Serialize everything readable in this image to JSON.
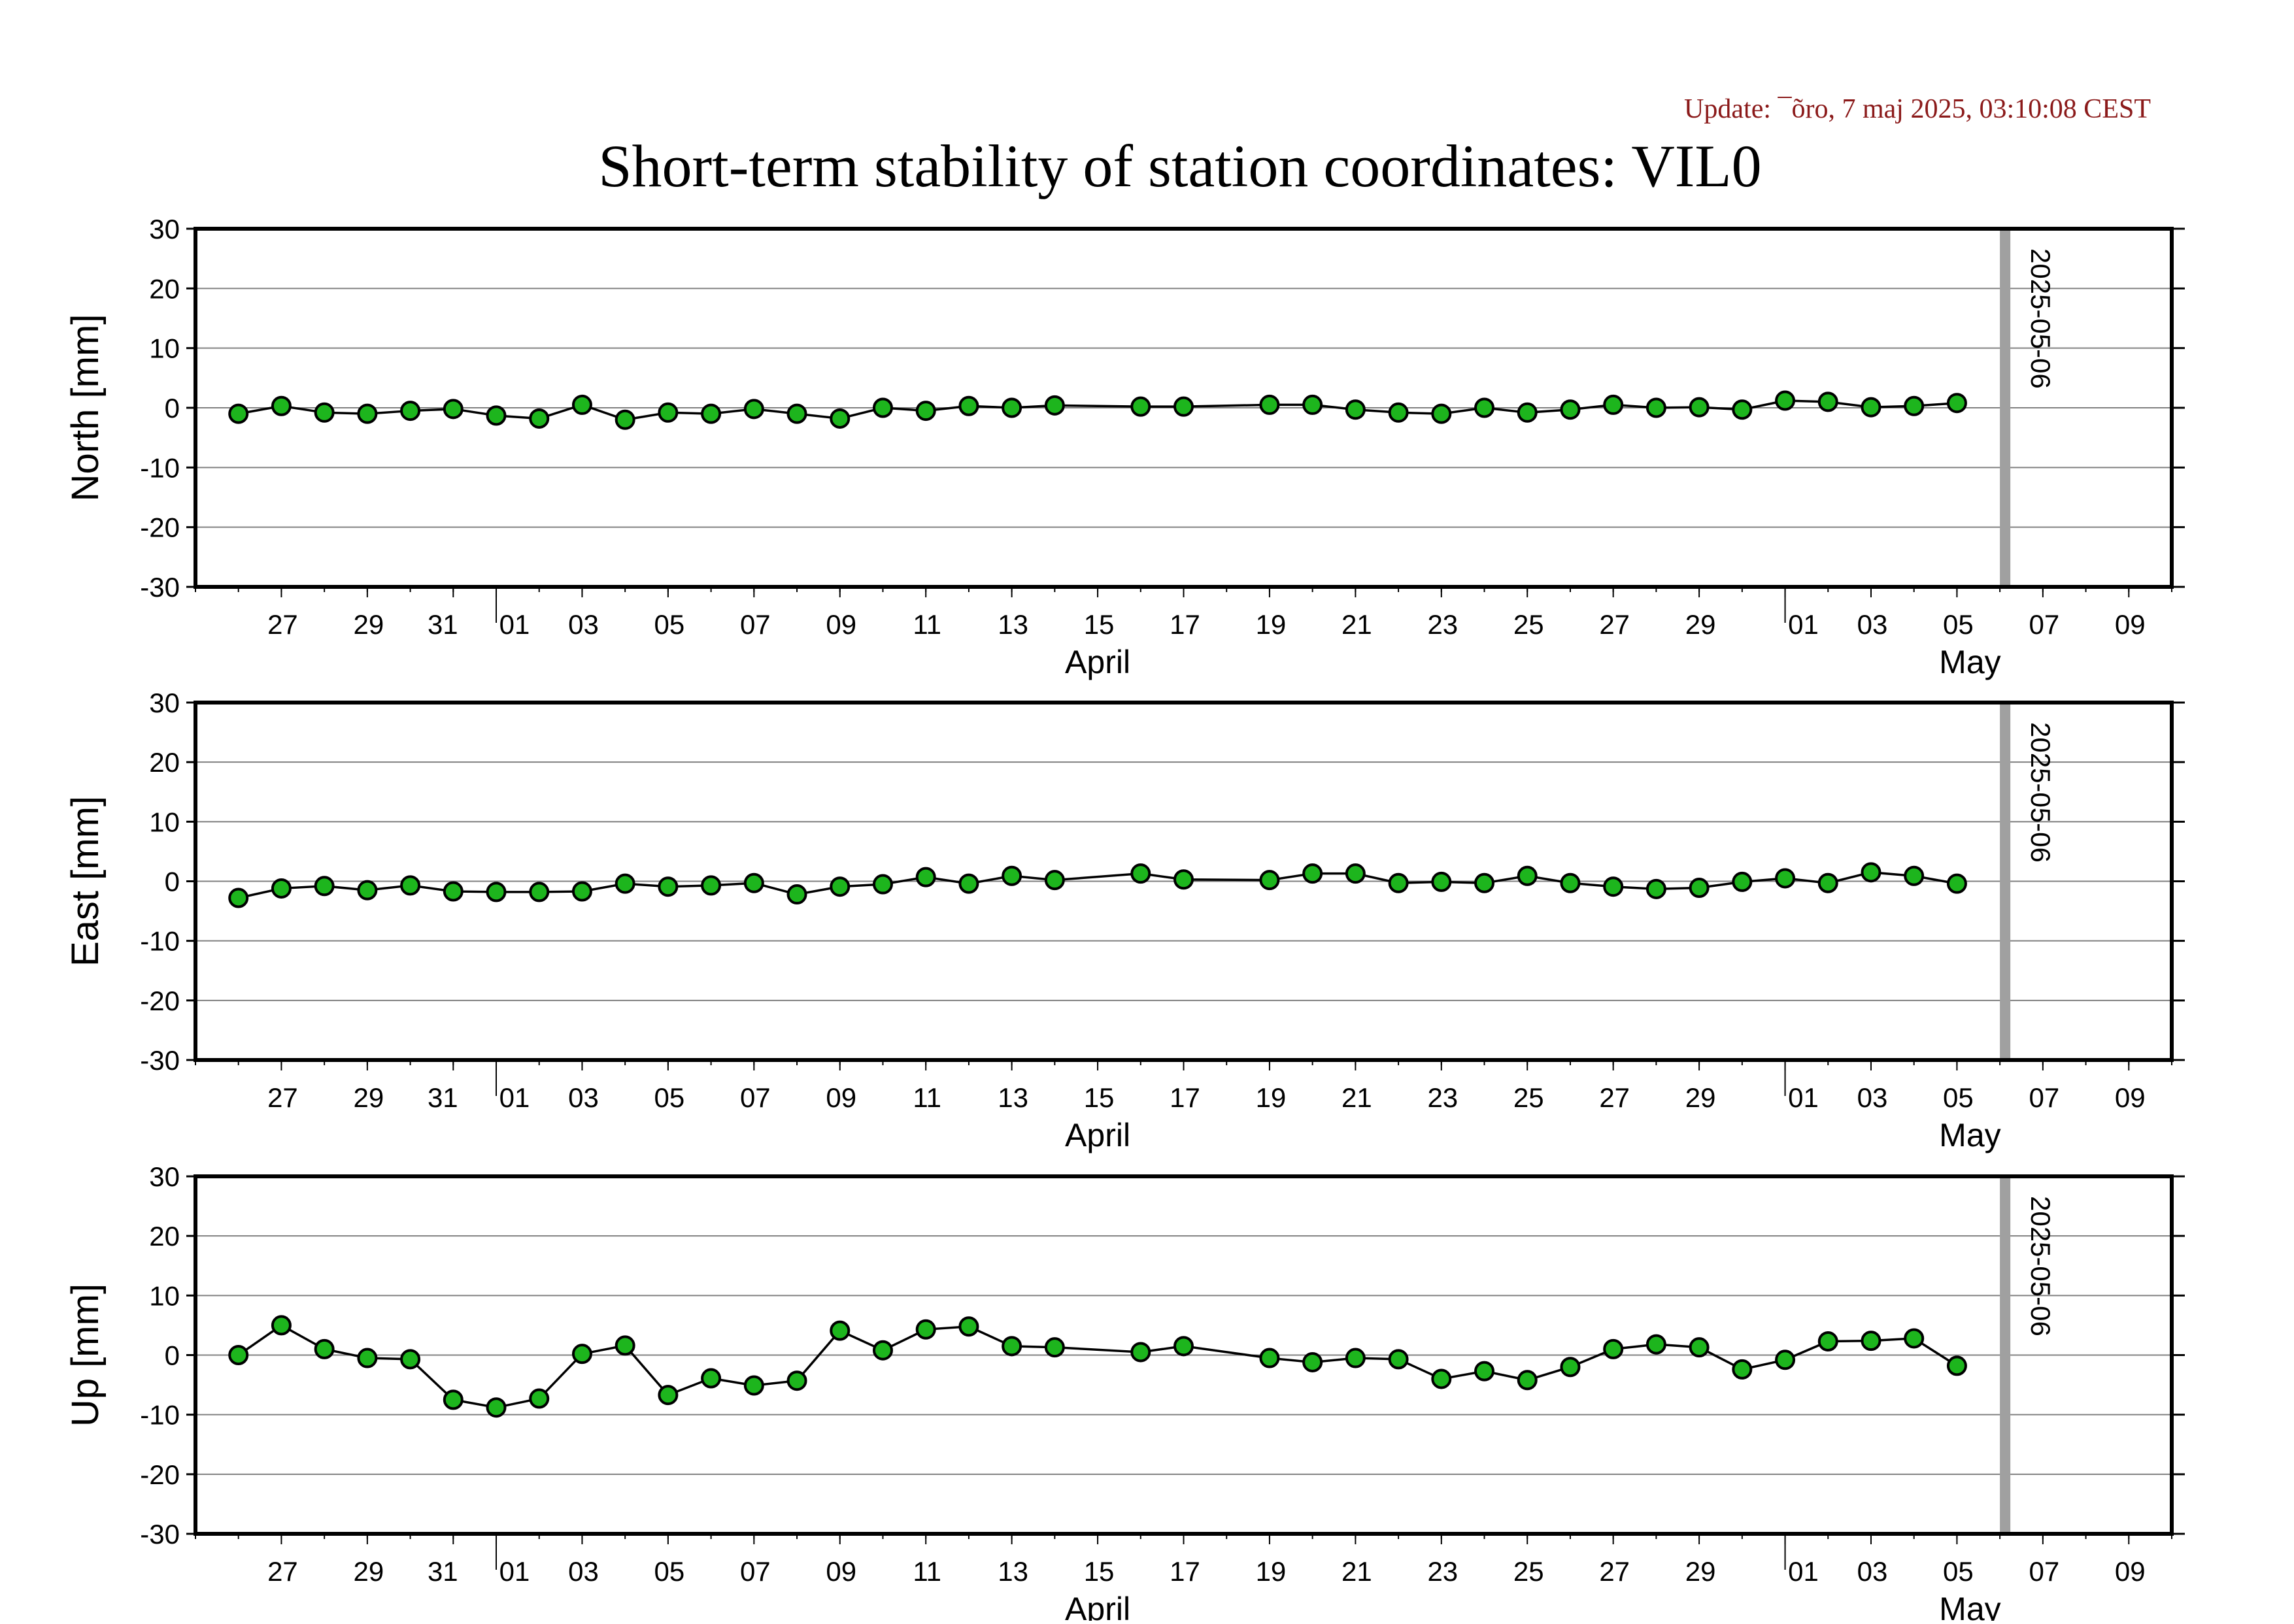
{
  "update_text": "Update: ¯õro, 7 maj 2025, 03:10:08 CEST",
  "title": "Short-term stability of station coordinates: VIL0",
  "colors": {
    "update_text": "#8b1a1a",
    "marker_fill": "#1db51d",
    "marker_stroke": "#000000",
    "line": "#000000",
    "grid": "#808080",
    "current_day_bar": "#a0a0a0",
    "frame": "#000000"
  },
  "chart_data": {
    "type": "line",
    "x_range": [
      "2025-03-25",
      "2025-05-10"
    ],
    "x_tick_labels": [
      "27",
      "29",
      "31",
      "01",
      "03",
      "05",
      "07",
      "09",
      "11",
      "13",
      "15",
      "17",
      "19",
      "21",
      "23",
      "25",
      "27",
      "29",
      "01",
      "03",
      "05",
      "07",
      "09"
    ],
    "x_month_labels": [
      "April",
      "May"
    ],
    "current_day_label": "2025-05-06",
    "y_ticks": [
      30,
      20,
      10,
      0,
      -10,
      -20,
      -30
    ],
    "ylim": [
      -30,
      30
    ],
    "grid": "horizontal",
    "dates": [
      "2025-03-26",
      "2025-03-27",
      "2025-03-28",
      "2025-03-29",
      "2025-03-30",
      "2025-03-31",
      "2025-04-01",
      "2025-04-02",
      "2025-04-03",
      "2025-04-04",
      "2025-04-05",
      "2025-04-06",
      "2025-04-07",
      "2025-04-08",
      "2025-04-09",
      "2025-04-10",
      "2025-04-11",
      "2025-04-12",
      "2025-04-13",
      "2025-04-14",
      "2025-04-16",
      "2025-04-17",
      "2025-04-19",
      "2025-04-20",
      "2025-04-21",
      "2025-04-22",
      "2025-04-23",
      "2025-04-24",
      "2025-04-25",
      "2025-04-26",
      "2025-04-27",
      "2025-04-28",
      "2025-04-29",
      "2025-04-30",
      "2025-05-01",
      "2025-05-02",
      "2025-05-03",
      "2025-05-04",
      "2025-05-05"
    ],
    "panels": [
      {
        "ylabel": "North [mm]",
        "values": [
          -1.0,
          0.3,
          -0.8,
          -1.0,
          -0.5,
          -0.2,
          -1.3,
          -1.8,
          0.5,
          -2.0,
          -0.8,
          -1.0,
          -0.2,
          -1.0,
          -1.8,
          0.0,
          -0.5,
          0.3,
          0.0,
          0.4,
          0.2,
          0.2,
          0.5,
          0.5,
          -0.3,
          -0.8,
          -1.0,
          0.0,
          -0.8,
          -0.3,
          0.5,
          0.0,
          0.1,
          -0.3,
          1.2,
          1.0,
          0.1,
          0.3,
          0.8
        ]
      },
      {
        "ylabel": "East [mm]",
        "values": [
          -2.8,
          -1.2,
          -0.8,
          -1.5,
          -0.7,
          -1.7,
          -1.8,
          -1.8,
          -1.7,
          -0.4,
          -0.9,
          -0.7,
          -0.3,
          -2.2,
          -0.9,
          -0.5,
          0.7,
          -0.4,
          0.9,
          0.2,
          1.3,
          0.3,
          0.2,
          1.3,
          1.3,
          -0.3,
          -0.1,
          -0.3,
          0.9,
          -0.3,
          -0.9,
          -1.3,
          -1.1,
          -0.1,
          0.5,
          -0.3,
          1.5,
          0.9,
          -0.4
        ]
      },
      {
        "ylabel": "Up [mm]",
        "values": [
          0.0,
          5.0,
          1.0,
          -0.5,
          -0.7,
          -7.5,
          -8.8,
          -7.3,
          0.2,
          1.6,
          -6.7,
          -3.9,
          -5.1,
          -4.3,
          4.1,
          0.8,
          4.3,
          4.8,
          1.5,
          1.3,
          0.5,
          1.5,
          -0.5,
          -1.2,
          -0.5,
          -0.7,
          -4.0,
          -2.7,
          -4.2,
          -2.0,
          1.0,
          1.8,
          1.3,
          -2.4,
          -0.8,
          2.3,
          2.4,
          2.8,
          -1.8
        ]
      }
    ]
  }
}
